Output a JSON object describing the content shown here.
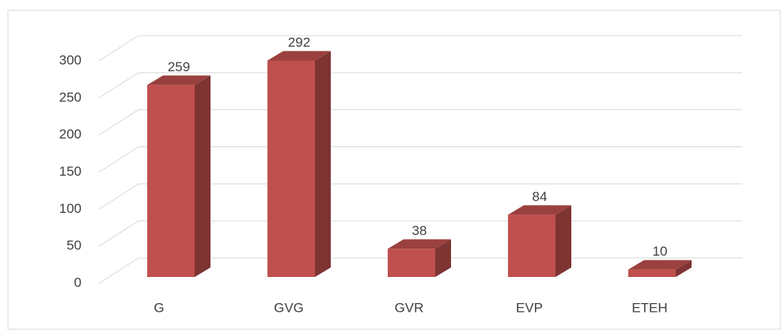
{
  "chart_data": {
    "type": "bar3d",
    "categories": [
      "G",
      "GVG",
      "GVR",
      "EVP",
      "ETEH"
    ],
    "values": [
      259,
      292,
      38,
      84,
      10
    ],
    "color": "#c0504d",
    "ylim": [
      0,
      300
    ],
    "yticks": [
      0,
      50,
      100,
      150,
      200,
      250,
      300
    ],
    "grid": true
  }
}
